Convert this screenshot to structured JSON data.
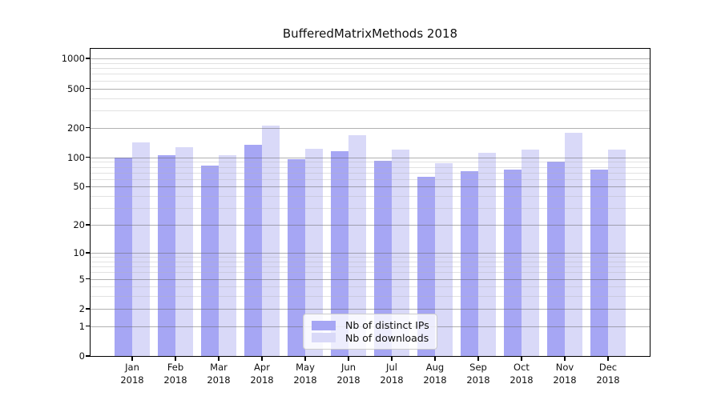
{
  "title": "BufferedMatrixMethods 2018",
  "chart_data": {
    "type": "bar",
    "title": "BufferedMatrixMethods 2018",
    "categories": [
      "Jan",
      "Feb",
      "Mar",
      "Apr",
      "May",
      "Jun",
      "Jul",
      "Aug",
      "Sep",
      "Oct",
      "Nov",
      "Dec"
    ],
    "x_year_label": "2018",
    "series": [
      {
        "name": "Nb of distinct IPs",
        "color": "#a6a6f4",
        "values": [
          100,
          106,
          83,
          134,
          96,
          115,
          92,
          63,
          72,
          75,
          91,
          75
        ]
      },
      {
        "name": "Nb of downloads",
        "color": "#d9d9f8",
        "values": [
          143,
          126,
          105,
          210,
          122,
          167,
          119,
          88,
          111,
          120,
          178,
          120
        ]
      }
    ],
    "y_axis": {
      "scale": "log10(1+v)",
      "ticks": [
        0,
        1,
        2,
        5,
        10,
        20,
        50,
        100,
        200,
        500,
        1000
      ],
      "minor_ticks": [
        3,
        4,
        6,
        7,
        8,
        9,
        30,
        40,
        60,
        70,
        80,
        90,
        300,
        400,
        600,
        700,
        800,
        900
      ],
      "ylim": [
        0,
        1235
      ]
    },
    "xlabel": "",
    "ylabel": "",
    "grid": true,
    "legend_position": "lower center"
  },
  "colors": {
    "background": "#ffffff",
    "bar_distinct_ips": "#a6a6f4",
    "bar_downloads": "#d9d9f8",
    "major_grid": "rgba(100,100,100,0.50)",
    "minor_grid": "rgba(180,180,180,0.38)",
    "spine": "#000000",
    "text": "#111111",
    "legend_border": "#cbcbcb",
    "legend_background": "rgba(255,255,255,0.8)"
  }
}
